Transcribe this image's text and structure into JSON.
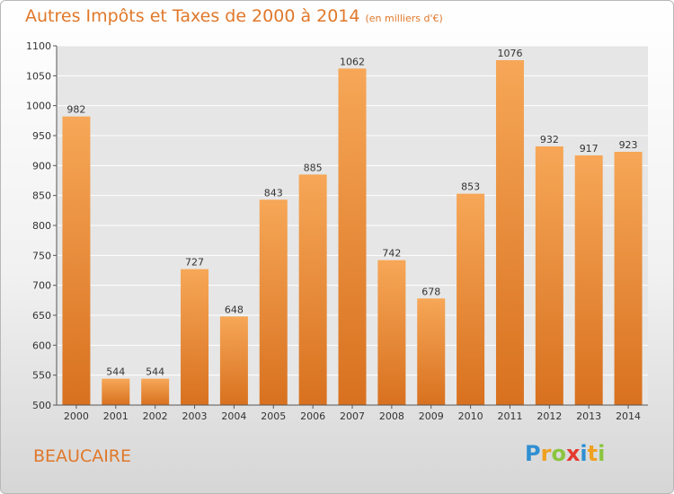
{
  "header": {
    "title": "Autres Impôts et Taxes de 2000 à 2014",
    "subtitle": "(en milliers d'€)"
  },
  "footer": {
    "city": "BEAUCAIRE",
    "logo_letters": [
      "P",
      "r",
      "o",
      "x",
      "i",
      "t",
      "i"
    ],
    "logo_colors": [
      "#2f8fd2",
      "#f0a020",
      "#8bc53f",
      "#e43a2f",
      "#2f8fd2",
      "#f0a020",
      "#8bc53f"
    ]
  },
  "colors": {
    "title": "#e0782a",
    "bar_light": "#f6a757",
    "bar_dark": "#d8711f",
    "grid": "#ffffff"
  },
  "chart_data": {
    "type": "bar",
    "categories": [
      "2000",
      "2001",
      "2002",
      "2003",
      "2004",
      "2005",
      "2006",
      "2007",
      "2008",
      "2009",
      "2010",
      "2011",
      "2012",
      "2013",
      "2014"
    ],
    "values": [
      982,
      544,
      544,
      727,
      648,
      843,
      885,
      1062,
      742,
      678,
      853,
      1076,
      932,
      917,
      923
    ],
    "ylim": [
      500,
      1100
    ],
    "yticks": [
      500,
      550,
      600,
      650,
      700,
      750,
      800,
      850,
      900,
      950,
      1000,
      1050,
      1100
    ],
    "grid": true,
    "xlabel": "",
    "ylabel": ""
  }
}
